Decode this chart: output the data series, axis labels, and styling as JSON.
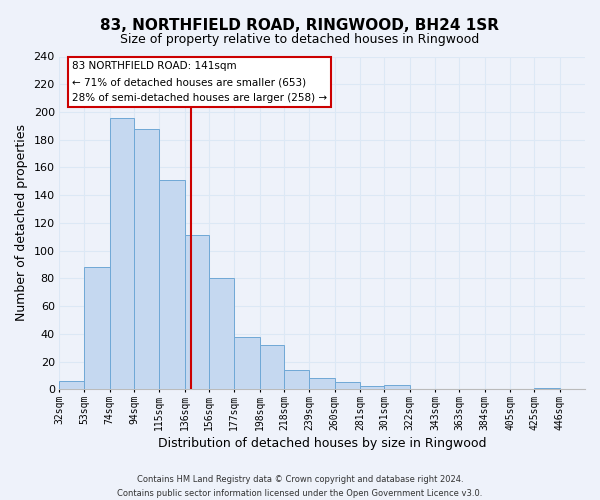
{
  "title": "83, NORTHFIELD ROAD, RINGWOOD, BH24 1SR",
  "subtitle": "Size of property relative to detached houses in Ringwood",
  "xlabel": "Distribution of detached houses by size in Ringwood",
  "ylabel": "Number of detached properties",
  "bar_left_edges": [
    32,
    53,
    74,
    94,
    115,
    136,
    156,
    177,
    198,
    218,
    239,
    260,
    281,
    301,
    322,
    343,
    363,
    384,
    405,
    425
  ],
  "bar_heights": [
    6,
    88,
    196,
    188,
    151,
    111,
    80,
    38,
    32,
    14,
    8,
    5,
    2,
    3,
    0,
    0,
    0,
    0,
    0,
    1
  ],
  "bar_widths": [
    21,
    21,
    20,
    21,
    21,
    20,
    21,
    21,
    20,
    21,
    21,
    21,
    20,
    21,
    21,
    20,
    21,
    21,
    20,
    21
  ],
  "bar_color": "#c5d8f0",
  "bar_edge_color": "#6fa8d6",
  "property_line_x": 141,
  "property_line_color": "#cc0000",
  "ylim": [
    0,
    240
  ],
  "yticks": [
    0,
    20,
    40,
    60,
    80,
    100,
    120,
    140,
    160,
    180,
    200,
    220,
    240
  ],
  "xtick_labels": [
    "32sqm",
    "53sqm",
    "74sqm",
    "94sqm",
    "115sqm",
    "136sqm",
    "156sqm",
    "177sqm",
    "198sqm",
    "218sqm",
    "239sqm",
    "260sqm",
    "281sqm",
    "301sqm",
    "322sqm",
    "343sqm",
    "363sqm",
    "384sqm",
    "405sqm",
    "425sqm",
    "446sqm"
  ],
  "annotation_title": "83 NORTHFIELD ROAD: 141sqm",
  "annotation_line2": "← 71% of detached houses are smaller (653)",
  "annotation_line3": "28% of semi-detached houses are larger (258) →",
  "footer_line1": "Contains HM Land Registry data © Crown copyright and database right 2024.",
  "footer_line2": "Contains public sector information licensed under the Open Government Licence v3.0.",
  "grid_color": "#dce8f5",
  "background_color": "#eef2fa",
  "xlim_left": 32,
  "xlim_right": 467
}
